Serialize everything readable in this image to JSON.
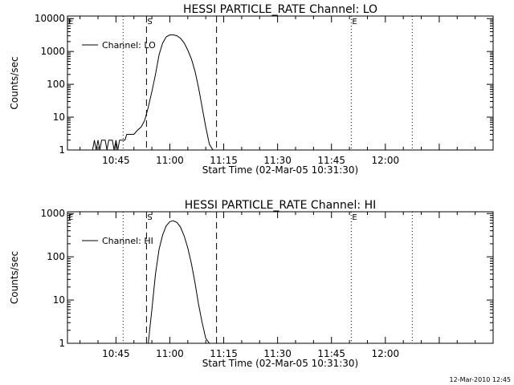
{
  "footer": {
    "timestamp": "12-Mar-2010 12:45"
  },
  "chart_data": [
    {
      "type": "line",
      "title": "HESSI PARTICLE_RATE Channel: LO",
      "xlabel": "Start Time (02-Mar-05 10:31:30)",
      "ylabel": "Counts/sec",
      "yscale": "log",
      "xlim": [
        "10:31:30",
        "12:30:00"
      ],
      "ylim": [
        1,
        12000
      ],
      "x_ticks": [
        "10:45",
        "11:00",
        "11:15",
        "11:30",
        "11:45",
        "12:00"
      ],
      "y_ticks": [
        {
          "value": 1,
          "label": "1"
        },
        {
          "value": 10,
          "label": "10"
        },
        {
          "value": 100,
          "label": "100"
        },
        {
          "value": 1000,
          "label": "1000"
        },
        {
          "value": 10000,
          "label": "10000"
        }
      ],
      "legend": {
        "position": "top-left",
        "entries": [
          "Channel: LO"
        ]
      },
      "markers": [
        {
          "time": "10:31:30",
          "label": "E",
          "style": "dotted"
        },
        {
          "time": "10:47:00",
          "label": "",
          "style": "dotted"
        },
        {
          "time": "10:53:30",
          "label": "S",
          "style": "dashed"
        },
        {
          "time": "11:13:00",
          "label": "",
          "style": "dashed"
        },
        {
          "time": "11:50:30",
          "label": "E",
          "style": "dotted"
        },
        {
          "time": "12:07:30",
          "label": "",
          "style": "dotted"
        }
      ],
      "series": [
        {
          "name": "Channel: LO",
          "x": [
            "10:38:00",
            "10:38:30",
            "10:39:00",
            "10:39:30",
            "10:40:00",
            "10:40:30",
            "10:41:00",
            "10:41:30",
            "10:42:00",
            "10:42:30",
            "10:43:00",
            "10:43:30",
            "10:44:00",
            "10:44:30",
            "10:45:00",
            "10:45:30",
            "10:46:00",
            "10:46:30",
            "10:47:00",
            "10:47:30",
            "10:48:00",
            "10:49:00",
            "10:50:00",
            "10:51:00",
            "10:52:00",
            "10:53:00",
            "10:54:00",
            "10:55:00",
            "10:56:00",
            "10:57:00",
            "10:58:00",
            "10:59:00",
            "11:00:00",
            "11:01:00",
            "11:02:00",
            "11:03:00",
            "11:04:00",
            "11:05:00",
            "11:06:00",
            "11:07:00",
            "11:08:00",
            "11:09:00",
            "11:10:00",
            "11:11:00",
            "11:12:00"
          ],
          "values": [
            1,
            1,
            2,
            1,
            2,
            1,
            2,
            2,
            2,
            1,
            2,
            2,
            2,
            1,
            2,
            1,
            2,
            2,
            2,
            2,
            3,
            3,
            3,
            4,
            5,
            8,
            20,
            60,
            200,
            800,
            1800,
            2800,
            3200,
            3200,
            3000,
            2500,
            1800,
            1100,
            600,
            250,
            80,
            20,
            5,
            1.5,
            1
          ]
        }
      ]
    },
    {
      "type": "line",
      "title": "HESSI PARTICLE_RATE Channel: HI",
      "xlabel": "Start Time (02-Mar-05 10:31:30)",
      "ylabel": "Counts/sec",
      "yscale": "log",
      "xlim": [
        "10:31:30",
        "12:30:00"
      ],
      "ylim": [
        1,
        1100
      ],
      "x_ticks": [
        "10:45",
        "11:00",
        "11:15",
        "11:30",
        "11:45",
        "12:00"
      ],
      "y_ticks": [
        {
          "value": 1,
          "label": "1"
        },
        {
          "value": 10,
          "label": "10"
        },
        {
          "value": 100,
          "label": "100"
        },
        {
          "value": 1000,
          "label": "1000"
        }
      ],
      "legend": {
        "position": "top-left",
        "entries": [
          "Channel: HI"
        ]
      },
      "markers": [
        {
          "time": "10:31:30",
          "label": "E",
          "style": "dotted"
        },
        {
          "time": "10:47:00",
          "label": "",
          "style": "dotted"
        },
        {
          "time": "10:53:30",
          "label": "S",
          "style": "dashed"
        },
        {
          "time": "11:13:00",
          "label": "",
          "style": "dashed"
        },
        {
          "time": "11:50:30",
          "label": "E",
          "style": "dotted"
        },
        {
          "time": "12:07:30",
          "label": "",
          "style": "dotted"
        }
      ],
      "series": [
        {
          "name": "Channel: HI",
          "x": [
            "10:54:00",
            "10:55:00",
            "10:56:00",
            "10:57:00",
            "10:58:00",
            "10:59:00",
            "11:00:00",
            "11:01:00",
            "11:02:00",
            "11:03:00",
            "11:04:00",
            "11:05:00",
            "11:06:00",
            "11:07:00",
            "11:08:00",
            "11:09:00",
            "11:10:00",
            "11:11:00"
          ],
          "values": [
            1,
            6,
            40,
            150,
            320,
            520,
            650,
            680,
            620,
            480,
            300,
            160,
            70,
            25,
            8,
            3,
            1.3,
            1
          ]
        }
      ]
    }
  ]
}
